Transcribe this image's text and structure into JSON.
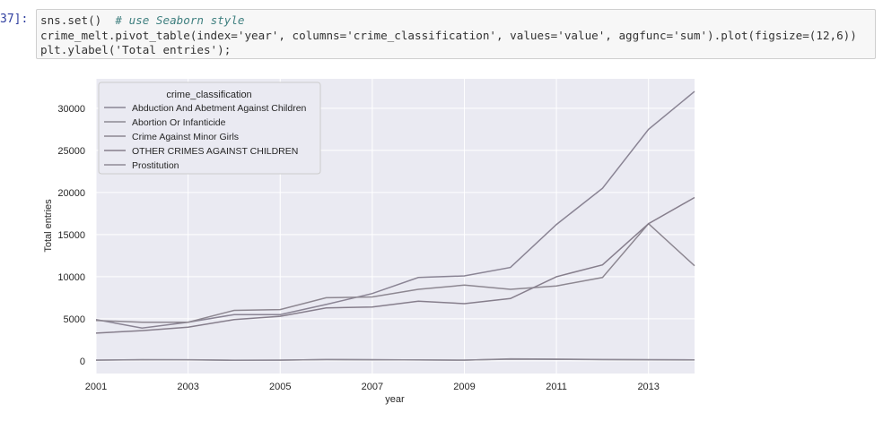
{
  "cell": {
    "prompt": "37]:",
    "code_line1": "sns.set()",
    "code_line1_comment": "# use Seaborn style",
    "code_line2": "crime_melt.pivot_table(index='year', columns='crime_classification', values='value', aggfunc='sum').plot(figsize=(12,6))",
    "code_line3": "plt.ylabel('Total entries');"
  },
  "chart_data": {
    "type": "line",
    "xlabel": "year",
    "ylabel": "Total entries",
    "xlim": [
      2001,
      2014
    ],
    "ylim": [
      -1500,
      33500
    ],
    "x_ticks": [
      "2001",
      "2003",
      "2005",
      "2007",
      "2009",
      "2011",
      "2013"
    ],
    "y_ticks": [
      "0",
      "5000",
      "10000",
      "15000",
      "20000",
      "25000",
      "30000"
    ],
    "grid": true,
    "legend_title": "crime_classification",
    "legend_placement": "top-left",
    "x": [
      2001,
      2002,
      2003,
      2004,
      2005,
      2006,
      2007,
      2008,
      2009,
      2010,
      2011,
      2012,
      2013,
      2014
    ],
    "series": [
      {
        "name": "Abduction And Abetment Against Children",
        "values": [
          4900,
          3900,
          4600,
          5500,
          5500,
          6700,
          8000,
          9900,
          10100,
          11100,
          16200,
          20500,
          27500,
          32000
        ]
      },
      {
        "name": "Abortion Or Infanticide",
        "values": [
          80,
          150,
          120,
          60,
          100,
          150,
          120,
          130,
          100,
          200,
          180,
          150,
          120,
          110
        ]
      },
      {
        "name": "Crime Against Minor Girls",
        "values": [
          4800,
          4600,
          4600,
          6000,
          6100,
          7500,
          7600,
          8500,
          9000,
          8500,
          8900,
          9900,
          16300,
          11300
        ]
      },
      {
        "name": "OTHER CRIMES AGAINST CHILDREN",
        "values": [
          3300,
          3600,
          4000,
          4900,
          5300,
          6300,
          6400,
          7100,
          6800,
          7400,
          10000,
          11400,
          16300,
          19400
        ]
      },
      {
        "name": "Prostitution",
        "values": [
          100,
          120,
          140,
          80,
          90,
          160,
          150,
          110,
          90,
          250,
          210,
          160,
          150,
          130
        ]
      }
    ],
    "colors": [
      "#8a8494",
      "#8c8a93",
      "#8d8791",
      "#867e8c",
      "#8f8a96"
    ]
  },
  "theme": {
    "plot_bg": "#eaeaf2",
    "grid": "#ffffff",
    "tick_text": "#262626"
  }
}
